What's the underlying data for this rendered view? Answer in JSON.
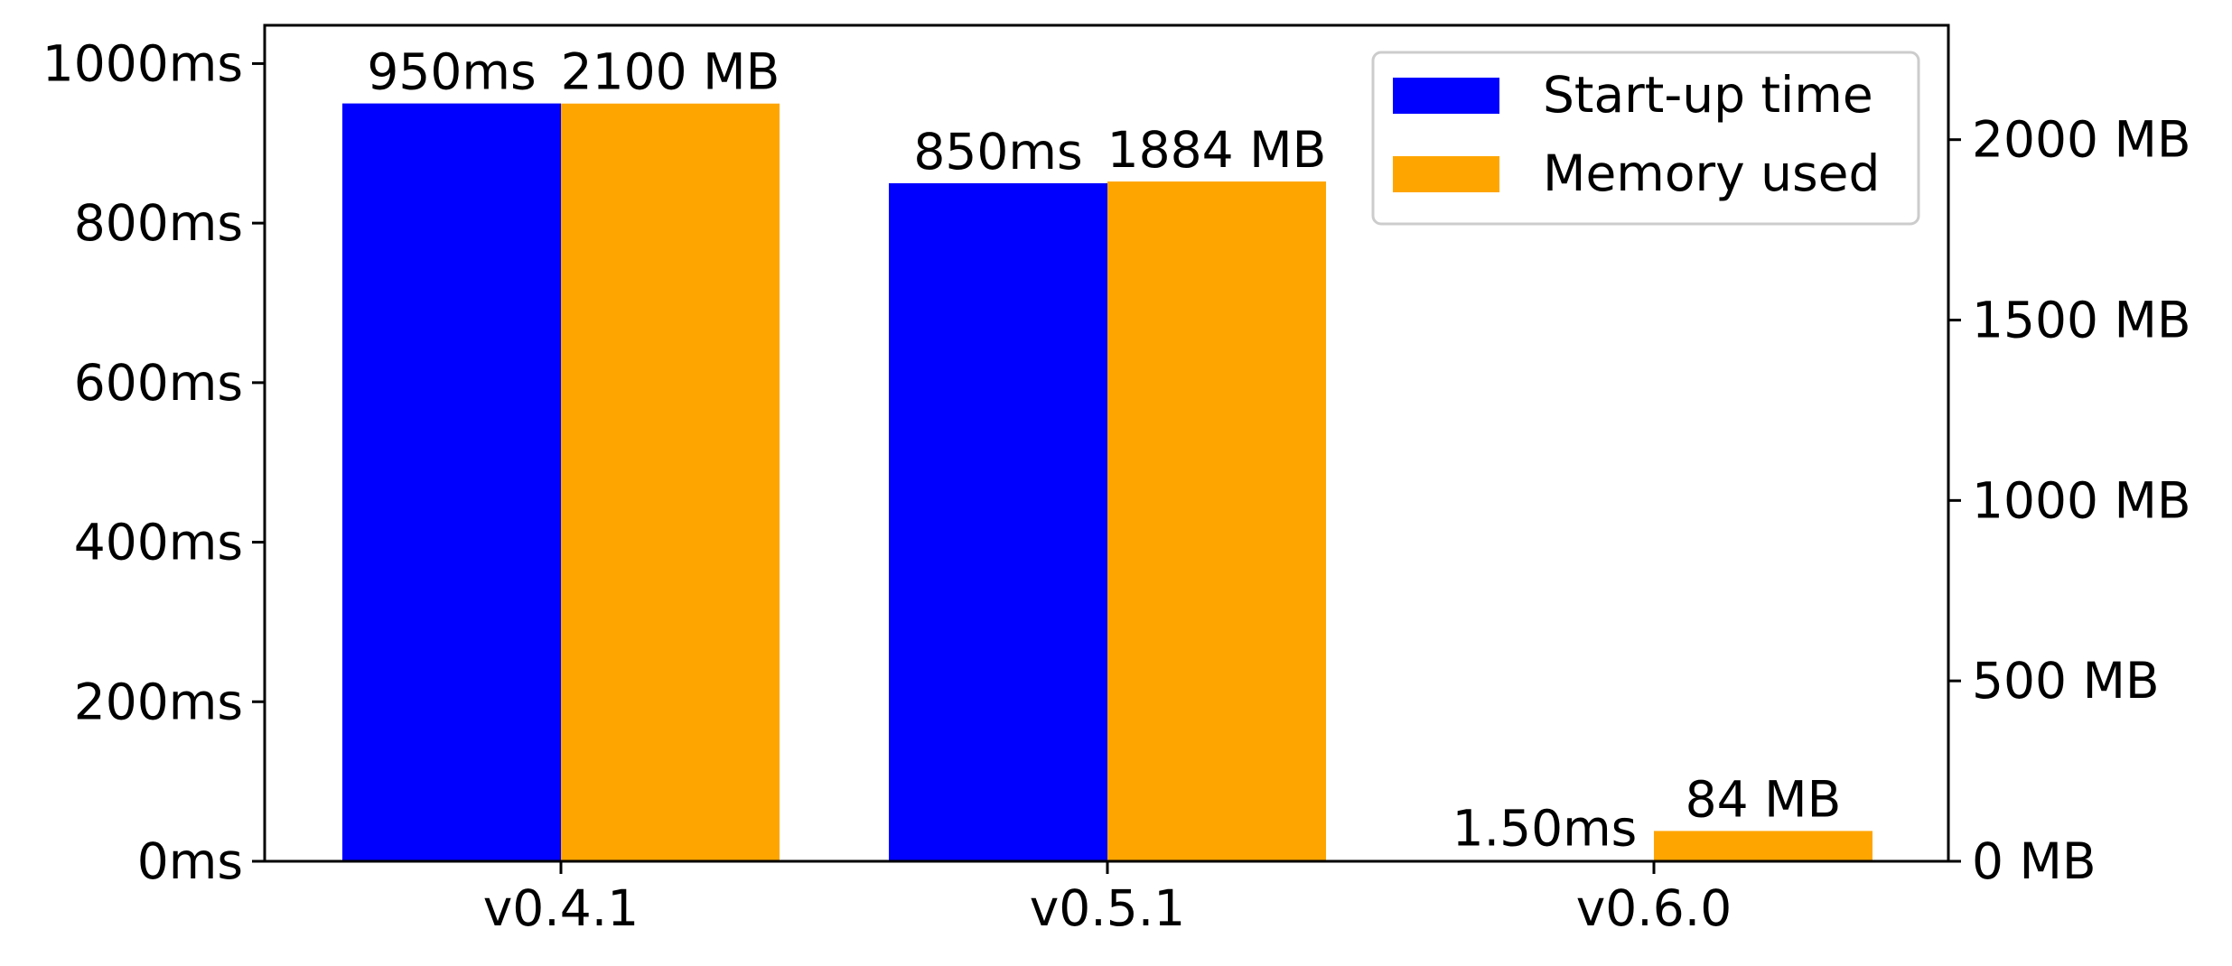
{
  "chart_data": {
    "type": "bar",
    "categories": [
      "v0.4.1",
      "v0.5.1",
      "v0.6.0"
    ],
    "series": [
      {
        "name": "Start-up time",
        "axis": "left",
        "color": "#0000ff",
        "values": [
          950,
          850,
          1.5
        ],
        "labels": [
          "950ms",
          "850ms",
          "1.50ms"
        ]
      },
      {
        "name": "Memory used",
        "axis": "right",
        "color": "#ffa500",
        "values": [
          2100,
          1884,
          84
        ],
        "labels": [
          "2100 MB",
          "1884 MB",
          "84 MB"
        ]
      }
    ],
    "y_left": {
      "lim": [
        0,
        1048
      ],
      "ticks": [
        0,
        200,
        400,
        600,
        800,
        1000
      ],
      "tick_labels": [
        "0ms",
        "200ms",
        "400ms",
        "600ms",
        "800ms",
        "1000ms"
      ]
    },
    "y_right": {
      "lim": [
        0,
        2317
      ],
      "ticks": [
        0,
        500,
        1000,
        1500,
        2000
      ],
      "tick_labels": [
        "0 MB",
        "500 MB",
        "1000 MB",
        "1500 MB",
        "2000 MB"
      ]
    },
    "legend": {
      "position": "top-right",
      "entries": [
        "Start-up time",
        "Memory used"
      ]
    },
    "grid": false
  }
}
